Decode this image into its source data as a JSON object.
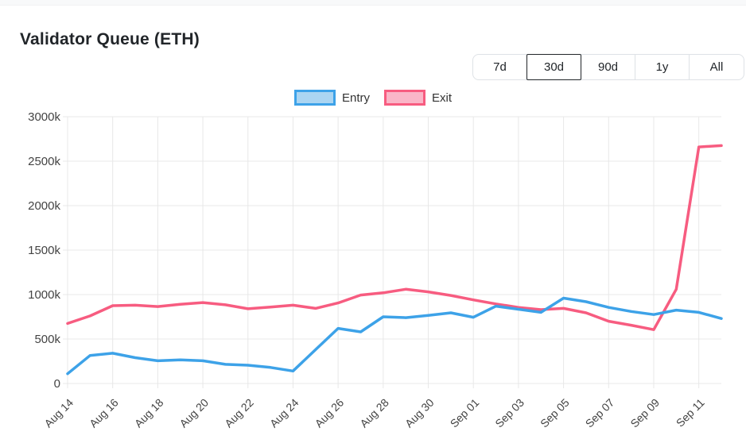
{
  "page": {
    "title": "Validator Queue (ETH)"
  },
  "range_selector": {
    "options": [
      {
        "label": "7d",
        "active": false
      },
      {
        "label": "30d",
        "active": true
      },
      {
        "label": "90d",
        "active": false
      },
      {
        "label": "1y",
        "active": false
      },
      {
        "label": "All",
        "active": false
      }
    ]
  },
  "chart_data": {
    "type": "line",
    "title": "Validator Queue (ETH)",
    "unit": "k",
    "ylim": [
      0,
      3000
    ],
    "ytick_step": 500,
    "ytick_labels": [
      "0",
      "500k",
      "1000k",
      "1500k",
      "2000k",
      "2500k",
      "3000k"
    ],
    "grid": true,
    "legend_position": "top",
    "x_tick_every": 2,
    "x": [
      "Aug 14",
      "Aug 15",
      "Aug 16",
      "Aug 17",
      "Aug 18",
      "Aug 19",
      "Aug 20",
      "Aug 21",
      "Aug 22",
      "Aug 23",
      "Aug 24",
      "Aug 25",
      "Aug 26",
      "Aug 27",
      "Aug 28",
      "Aug 29",
      "Aug 30",
      "Aug 31",
      "Sep 01",
      "Sep 02",
      "Sep 03",
      "Sep 04",
      "Sep 05",
      "Sep 06",
      "Sep 07",
      "Sep 08",
      "Sep 09",
      "Sep 10",
      "Sep 11",
      "Sep 12"
    ],
    "series": [
      {
        "name": "Entry",
        "color": "#3da2e8",
        "fill": "#abd5f2",
        "values": [
          110,
          315,
          340,
          290,
          255,
          265,
          255,
          215,
          205,
          180,
          140,
          380,
          620,
          580,
          750,
          740,
          765,
          795,
          745,
          870,
          835,
          800,
          960,
          920,
          855,
          810,
          775,
          825,
          800,
          730
        ]
      },
      {
        "name": "Exit",
        "color": "#f75c80",
        "fill": "#fab6c8",
        "values": [
          675,
          760,
          875,
          880,
          865,
          890,
          910,
          885,
          840,
          860,
          880,
          845,
          905,
          995,
          1020,
          1060,
          1030,
          990,
          940,
          895,
          855,
          830,
          845,
          795,
          700,
          655,
          605,
          1060,
          2660,
          2675
        ]
      }
    ]
  }
}
